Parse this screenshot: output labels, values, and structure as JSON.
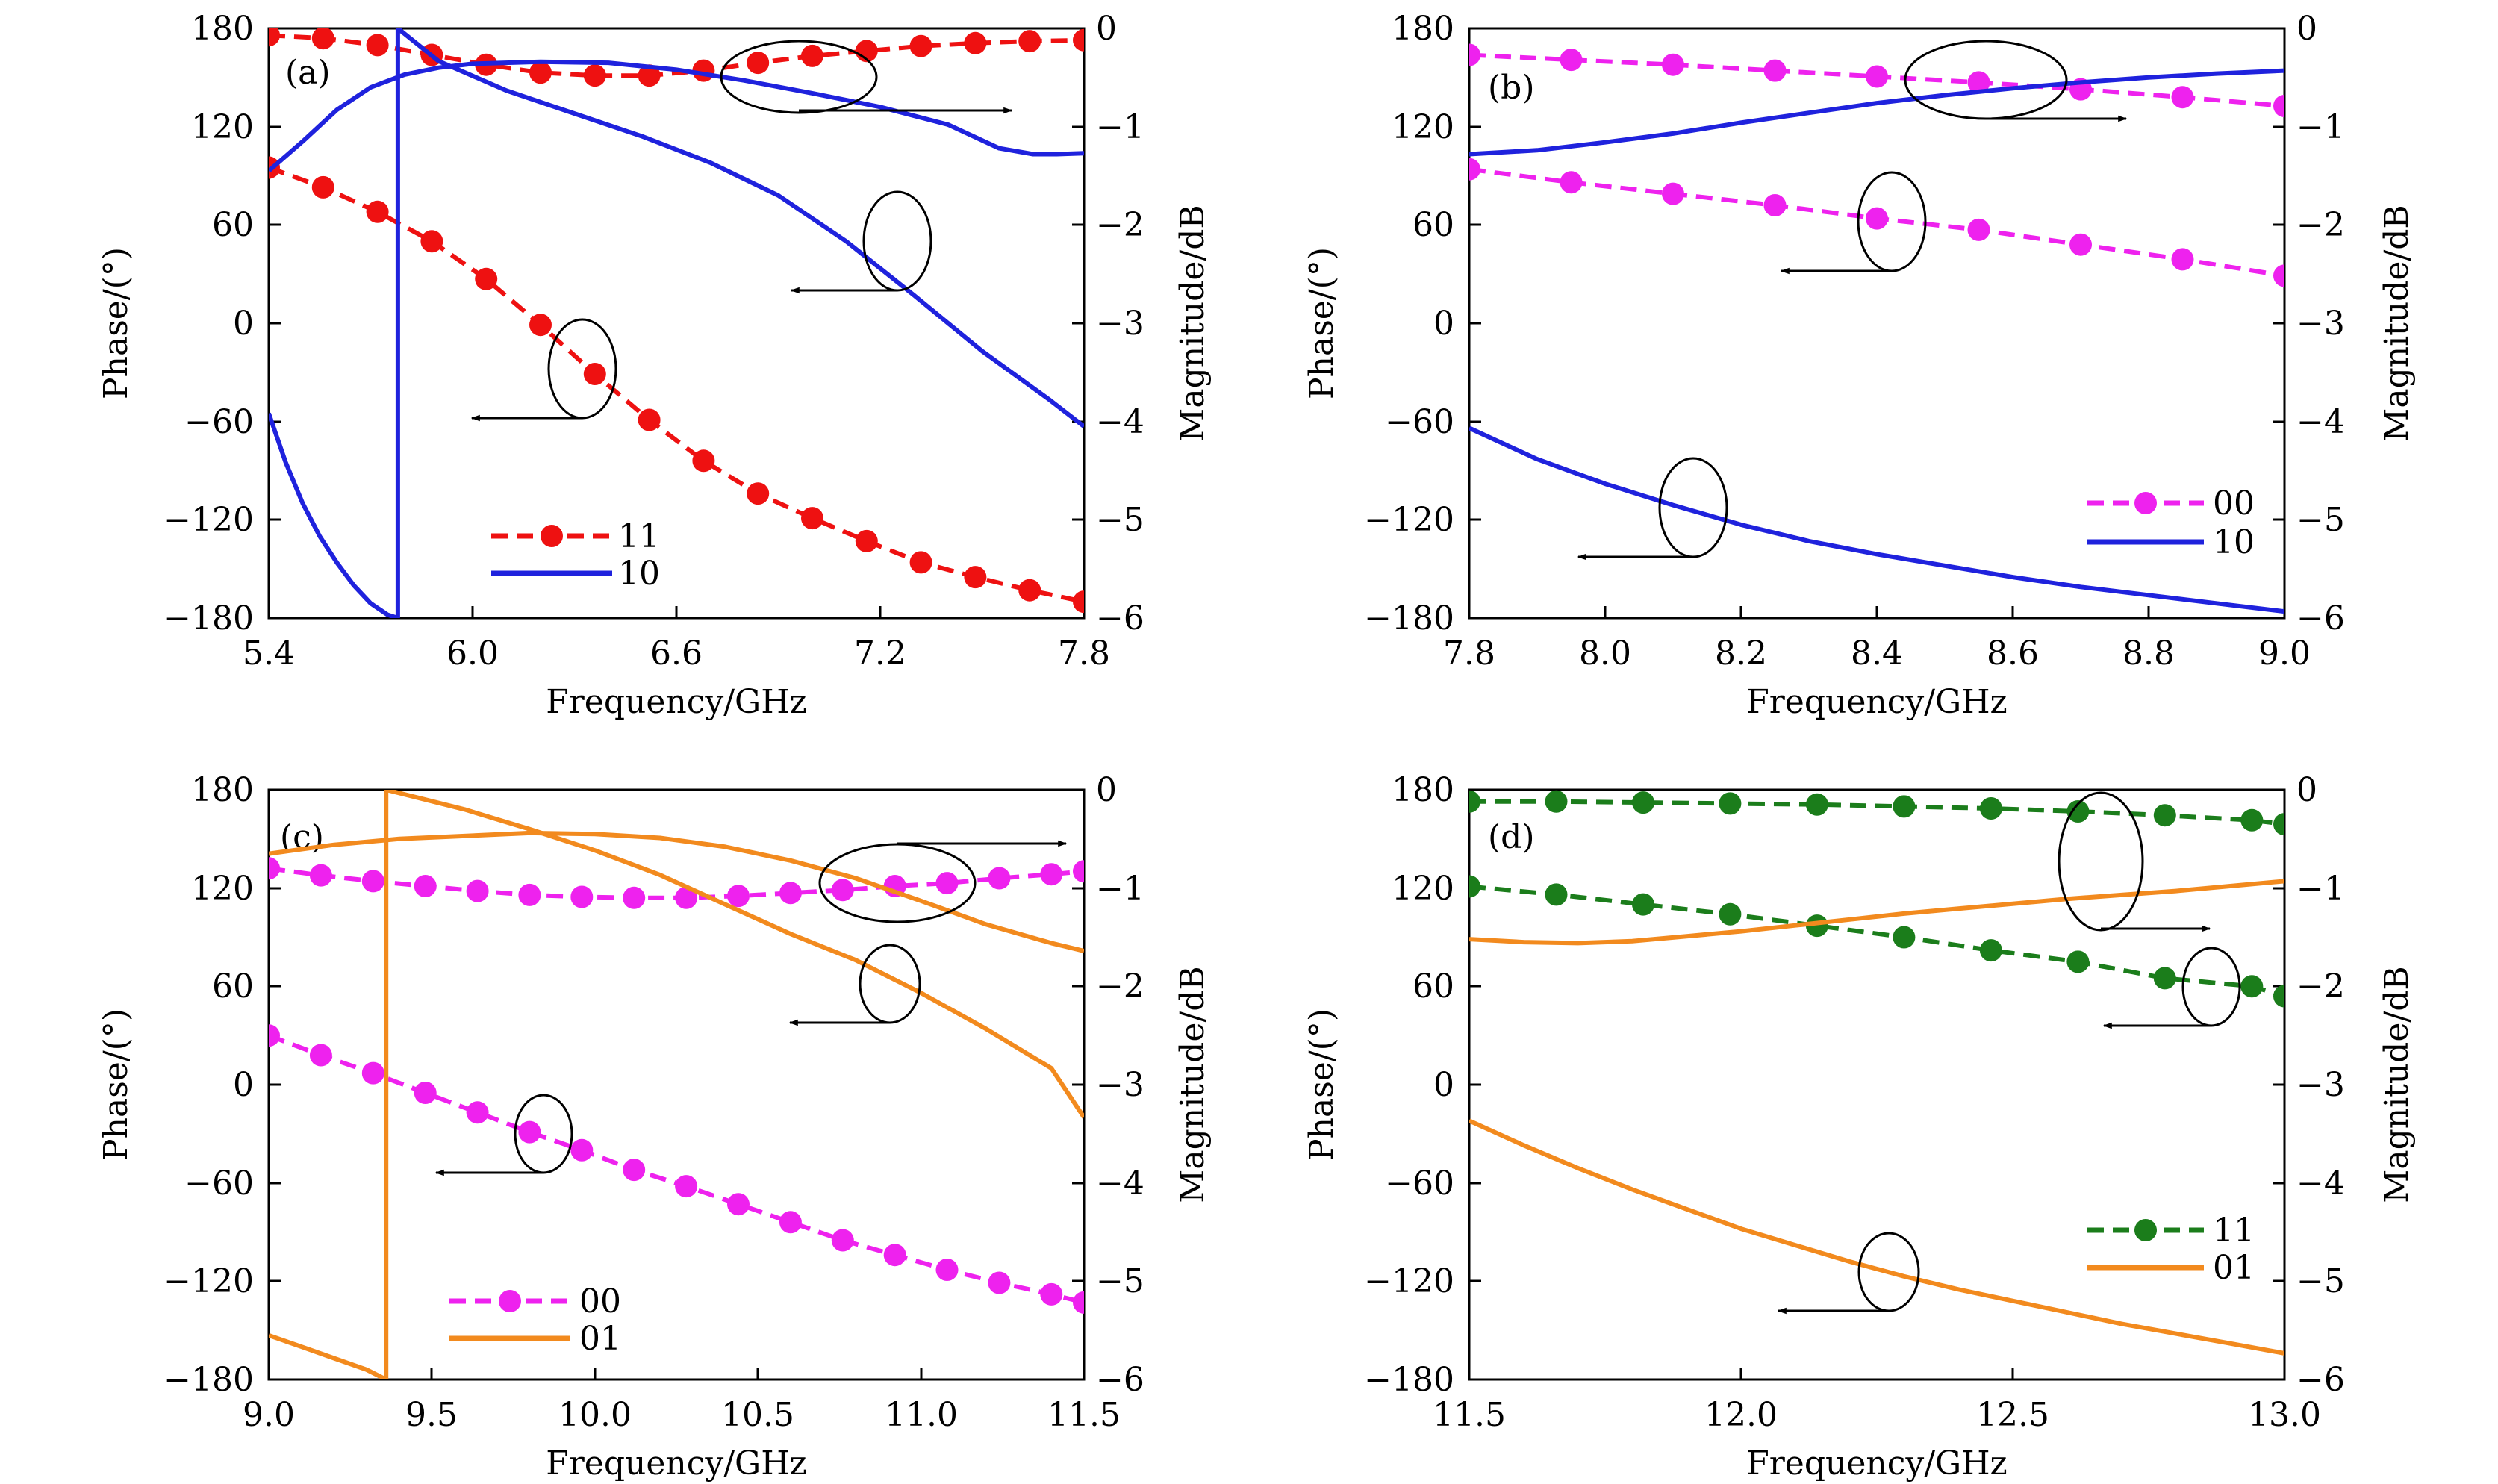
{
  "figure": {
    "panels": [
      {
        "id": "a",
        "label": "(a)",
        "xlim": [
          5.4,
          7.8
        ],
        "xticks": [
          5.4,
          6.0,
          6.6,
          7.2,
          7.8
        ],
        "xticklabels": [
          "5.4",
          "6.0",
          "6.6",
          "7.2",
          "7.8"
        ]
      },
      {
        "id": "b",
        "label": "(b)",
        "xlim": [
          7.8,
          9.0
        ],
        "xticks": [
          7.8,
          8.0,
          8.2,
          8.4,
          8.6,
          8.8,
          9.0
        ],
        "xticklabels": [
          "7.8",
          "8.0",
          "8.2",
          "8.4",
          "8.6",
          "8.8",
          "9.0"
        ]
      },
      {
        "id": "c",
        "label": "(c)",
        "xlim": [
          9.0,
          11.5
        ],
        "xticks": [
          9.0,
          9.5,
          10.0,
          10.5,
          11.0,
          11.5
        ],
        "xticklabels": [
          "9.0",
          "9.5",
          "10.0",
          "10.5",
          "11.0",
          "11.5"
        ]
      },
      {
        "id": "d",
        "label": "(d)",
        "xlim": [
          11.5,
          13.0
        ],
        "xticks": [
          11.5,
          12.0,
          12.5,
          13.0
        ],
        "xticklabels": [
          "11.5",
          "12.0",
          "12.5",
          "13.0"
        ]
      }
    ],
    "common": {
      "xlabel": "Frequency/GHz",
      "ylabel_left": "Phase/(°)",
      "ylabel_right": "Magnitude/dB",
      "ylim_left": [
        -180,
        180
      ],
      "yticks_left": [
        "180",
        "120",
        "60",
        "0",
        "−60",
        "−120",
        "−180"
      ],
      "ylim_right": [
        -6,
        0
      ],
      "yticks_right": [
        "0",
        "−1",
        "−2",
        "−3",
        "−4",
        "−5",
        "−6"
      ]
    },
    "colors": {
      "red": "#ee1111",
      "blue": "#1f22dd",
      "magenta": "#ee22ee",
      "orange": "#f28a1e",
      "green": "#1b7d1b"
    }
  },
  "chart_data": [
    {
      "type": "line",
      "panel": "a",
      "xlabel": "Frequency/GHz",
      "ylabel": "Phase/(°)",
      "ylabel_right": "Magnitude/dB",
      "xlim": [
        5.4,
        7.8
      ],
      "ylim": [
        -180,
        180
      ],
      "ylim_right": [
        -6,
        0
      ],
      "legend": {
        "placement": "bottom-left",
        "entries": [
          "11",
          "10"
        ]
      },
      "series": [
        {
          "name": "11",
          "style": "dashed-markers",
          "color": "#ee1111",
          "quantity": "phase",
          "axis": "left",
          "x": [
            5.4,
            5.56,
            5.72,
            5.88,
            6.04,
            6.2,
            6.36,
            6.52,
            6.68,
            6.84,
            7.0,
            7.16,
            7.32,
            7.48,
            7.64,
            7.8
          ],
          "y": [
            95,
            83,
            68,
            50,
            27,
            -1,
            -31,
            -59,
            -84,
            -104,
            -119,
            -133,
            -146,
            -155,
            -163,
            -170
          ]
        },
        {
          "name": "11",
          "style": "dashed-markers",
          "color": "#ee1111",
          "quantity": "magnitude",
          "axis": "right",
          "x": [
            5.4,
            5.56,
            5.72,
            5.88,
            6.04,
            6.2,
            6.36,
            6.52,
            6.68,
            6.84,
            7.0,
            7.16,
            7.32,
            7.48,
            7.64,
            7.8
          ],
          "y": [
            -0.07,
            -0.1,
            -0.17,
            -0.27,
            -0.37,
            -0.45,
            -0.48,
            -0.48,
            -0.43,
            -0.35,
            -0.28,
            -0.23,
            -0.18,
            -0.15,
            -0.13,
            -0.12
          ]
        },
        {
          "name": "10",
          "style": "solid",
          "color": "#1f22dd",
          "quantity": "phase",
          "axis": "left",
          "x": [
            5.4,
            5.45,
            5.5,
            5.55,
            5.6,
            5.65,
            5.7,
            5.75,
            5.78,
            5.78,
            5.9,
            6.1,
            6.3,
            6.5,
            6.7,
            6.9,
            7.1,
            7.3,
            7.5,
            7.7,
            7.8
          ],
          "y": [
            -55,
            -85,
            -110,
            -130,
            -146,
            -160,
            -171,
            -178,
            -180,
            180,
            160,
            142,
            128,
            114,
            98,
            78,
            50,
            17,
            -17,
            -47,
            -63
          ]
        },
        {
          "name": "10",
          "style": "solid",
          "color": "#1f22dd",
          "quantity": "magnitude",
          "axis": "right",
          "x": [
            5.4,
            5.5,
            5.6,
            5.7,
            5.8,
            5.9,
            6.0,
            6.2,
            6.4,
            6.6,
            6.8,
            7.0,
            7.2,
            7.4,
            7.55,
            7.65,
            7.72,
            7.8
          ],
          "y": [
            -1.45,
            -1.15,
            -0.83,
            -0.6,
            -0.47,
            -0.4,
            -0.36,
            -0.34,
            -0.35,
            -0.42,
            -0.53,
            -0.66,
            -0.8,
            -0.98,
            -1.22,
            -1.28,
            -1.28,
            -1.27
          ]
        }
      ]
    },
    {
      "type": "line",
      "panel": "b",
      "xlabel": "Frequency/GHz",
      "ylabel": "Phase/(°)",
      "ylabel_right": "Magnitude/dB",
      "xlim": [
        7.8,
        9.0
      ],
      "ylim": [
        -180,
        180
      ],
      "ylim_right": [
        -6,
        0
      ],
      "legend": {
        "placement": "bottom-right",
        "entries": [
          "00",
          "10"
        ]
      },
      "series": [
        {
          "name": "00",
          "style": "dashed-markers",
          "color": "#ee22ee",
          "quantity": "phase",
          "axis": "left",
          "x": [
            7.8,
            7.95,
            8.1,
            8.25,
            8.4,
            8.55,
            8.7,
            8.85,
            9.0
          ],
          "y": [
            94,
            86,
            79,
            72,
            64,
            57,
            48,
            39,
            29
          ]
        },
        {
          "name": "00",
          "style": "dashed-markers",
          "color": "#ee22ee",
          "quantity": "magnitude",
          "axis": "right",
          "x": [
            7.8,
            7.95,
            8.1,
            8.25,
            8.4,
            8.55,
            8.7,
            8.85,
            9.0
          ],
          "y": [
            -0.27,
            -0.32,
            -0.37,
            -0.43,
            -0.49,
            -0.55,
            -0.62,
            -0.7,
            -0.79
          ]
        },
        {
          "name": "10",
          "style": "solid",
          "color": "#1f22dd",
          "quantity": "phase",
          "axis": "left",
          "x": [
            7.8,
            7.9,
            8.0,
            8.1,
            8.2,
            8.3,
            8.4,
            8.5,
            8.6,
            8.7,
            8.8,
            8.9,
            9.0
          ],
          "y": [
            -64,
            -83,
            -98,
            -111,
            -123,
            -133,
            -141,
            -148,
            -155,
            -161,
            -166,
            -171,
            -176
          ]
        },
        {
          "name": "10",
          "style": "solid",
          "color": "#1f22dd",
          "quantity": "magnitude",
          "axis": "right",
          "x": [
            7.8,
            7.9,
            8.0,
            8.1,
            8.2,
            8.3,
            8.4,
            8.5,
            8.6,
            8.7,
            8.8,
            8.9,
            9.0
          ],
          "y": [
            -1.28,
            -1.24,
            -1.16,
            -1.07,
            -0.96,
            -0.86,
            -0.76,
            -0.68,
            -0.61,
            -0.55,
            -0.5,
            -0.46,
            -0.43
          ]
        }
      ]
    },
    {
      "type": "line",
      "panel": "c",
      "xlabel": "Frequency/GHz",
      "ylabel": "Phase/(°)",
      "ylabel_right": "Magnitude/dB",
      "xlim": [
        9.0,
        11.5
      ],
      "ylim": [
        -180,
        180
      ],
      "ylim_right": [
        -6,
        0
      ],
      "legend": {
        "placement": "bottom-left",
        "entries": [
          "00",
          "01"
        ]
      },
      "series": [
        {
          "name": "00",
          "style": "dashed-markers",
          "color": "#ee22ee",
          "quantity": "phase",
          "axis": "left",
          "x": [
            9.0,
            9.16,
            9.32,
            9.48,
            9.64,
            9.8,
            9.96,
            10.12,
            10.28,
            10.44,
            10.6,
            10.76,
            10.92,
            11.08,
            11.24,
            11.4,
            11.5
          ],
          "y": [
            30,
            18,
            7,
            -5,
            -17,
            -29,
            -40,
            -52,
            -62,
            -73,
            -84,
            -95,
            -104,
            -113,
            -121,
            -128,
            -133
          ]
        },
        {
          "name": "00",
          "style": "dashed-markers",
          "color": "#ee22ee",
          "quantity": "magnitude",
          "axis": "right",
          "x": [
            9.0,
            9.16,
            9.32,
            9.48,
            9.64,
            9.8,
            9.96,
            10.12,
            10.28,
            10.44,
            10.6,
            10.76,
            10.92,
            11.08,
            11.24,
            11.4,
            11.5
          ],
          "y": [
            -0.8,
            -0.87,
            -0.93,
            -0.98,
            -1.03,
            -1.07,
            -1.09,
            -1.1,
            -1.1,
            -1.08,
            -1.05,
            -1.02,
            -0.98,
            -0.95,
            -0.9,
            -0.86,
            -0.83
          ]
        },
        {
          "name": "01",
          "style": "solid",
          "color": "#f28a1e",
          "quantity": "phase",
          "axis": "left",
          "x": [
            9.0,
            9.1,
            9.2,
            9.3,
            9.36,
            9.36,
            9.6,
            9.8,
            10.0,
            10.2,
            10.4,
            10.6,
            10.8,
            11.0,
            11.2,
            11.4,
            11.5
          ],
          "y": [
            -153,
            -160,
            -167,
            -174,
            -180,
            180,
            168,
            156,
            143,
            128,
            110,
            92,
            76,
            56,
            34,
            10,
            -20
          ]
        },
        {
          "name": "01",
          "style": "solid",
          "color": "#f28a1e",
          "quantity": "magnitude",
          "axis": "right",
          "x": [
            9.0,
            9.2,
            9.4,
            9.6,
            9.8,
            10.0,
            10.2,
            10.4,
            10.6,
            10.8,
            11.0,
            11.2,
            11.4,
            11.5
          ],
          "y": [
            -0.65,
            -0.56,
            -0.5,
            -0.47,
            -0.44,
            -0.45,
            -0.49,
            -0.58,
            -0.72,
            -0.9,
            -1.13,
            -1.37,
            -1.56,
            -1.64
          ]
        }
      ]
    },
    {
      "type": "line",
      "panel": "d",
      "xlabel": "Frequency/GHz",
      "ylabel": "Phase/(°)",
      "ylabel_right": "Magnitude/dB",
      "xlim": [
        11.5,
        13.0
      ],
      "ylim": [
        -180,
        180
      ],
      "ylim_right": [
        -6,
        0
      ],
      "legend": {
        "placement": "bottom-right",
        "entries": [
          "11",
          "01"
        ]
      },
      "series": [
        {
          "name": "11",
          "style": "dashed-markers",
          "color": "#1b7d1b",
          "quantity": "phase",
          "axis": "left",
          "x": [
            11.5,
            11.66,
            11.82,
            11.98,
            12.14,
            12.3,
            12.46,
            12.62,
            12.78,
            12.94,
            13.0
          ],
          "y": [
            121,
            116,
            110,
            104,
            97,
            90,
            82,
            75,
            65,
            60,
            54
          ]
        },
        {
          "name": "11",
          "style": "dashed-markers",
          "color": "#1b7d1b",
          "quantity": "magnitude",
          "axis": "right",
          "x": [
            11.5,
            11.66,
            11.82,
            11.98,
            12.14,
            12.3,
            12.46,
            12.62,
            12.78,
            12.94,
            13.0
          ],
          "y": [
            -0.12,
            -0.12,
            -0.13,
            -0.14,
            -0.15,
            -0.17,
            -0.19,
            -0.22,
            -0.26,
            -0.31,
            -0.35
          ]
        },
        {
          "name": "01",
          "style": "solid",
          "color": "#f28a1e",
          "quantity": "phase",
          "axis": "left",
          "x": [
            11.5,
            11.6,
            11.7,
            11.8,
            11.9,
            12.0,
            12.1,
            12.2,
            12.3,
            12.4,
            12.5,
            12.6,
            12.7,
            12.8,
            12.9,
            13.0
          ],
          "y": [
            -22,
            -37,
            -51,
            -64,
            -76,
            -88,
            -98,
            -108,
            -117,
            -125,
            -132,
            -139,
            -146,
            -152,
            -158,
            -164
          ]
        },
        {
          "name": "01",
          "style": "solid",
          "color": "#f28a1e",
          "quantity": "magnitude",
          "axis": "right",
          "x": [
            11.5,
            11.6,
            11.7,
            11.8,
            11.9,
            12.0,
            12.1,
            12.2,
            12.3,
            12.4,
            12.5,
            12.6,
            12.7,
            12.8,
            12.9,
            13.0
          ],
          "y": [
            -1.52,
            -1.55,
            -1.56,
            -1.54,
            -1.49,
            -1.44,
            -1.38,
            -1.32,
            -1.26,
            -1.21,
            -1.16,
            -1.11,
            -1.07,
            -1.03,
            -0.98,
            -0.93
          ]
        }
      ]
    }
  ]
}
